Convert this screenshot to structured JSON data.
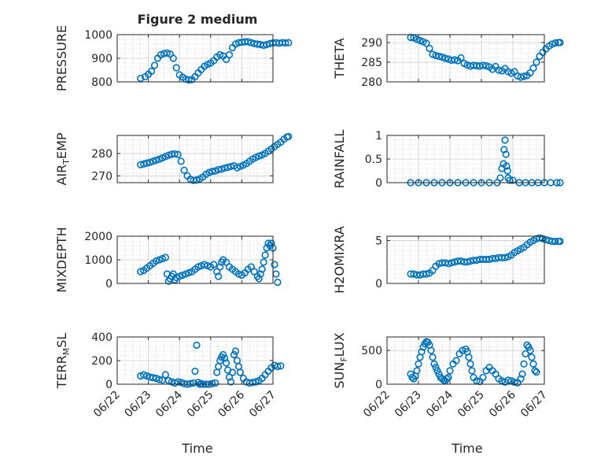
{
  "figure": {
    "title": "Figure 2 medium",
    "xlabel": "Time"
  },
  "time_ticks": [
    "06/22",
    "06/23",
    "06/24",
    "06/25",
    "06/26",
    "06/27"
  ],
  "colors": {
    "marker": "#0072BD",
    "axis": "#262626",
    "grid": "#bdbdbd"
  },
  "chart_data": [
    {
      "type": "scatter",
      "ylabel": "PRESSURE",
      "ylim": [
        800,
        1000
      ],
      "yticks": [
        800,
        900,
        1000
      ],
      "grid": true,
      "x": [
        0.75,
        0.9,
        1.0,
        1.1,
        1.2,
        1.3,
        1.4,
        1.5,
        1.6,
        1.7,
        1.8,
        1.9,
        2.0,
        2.1,
        2.2,
        2.3,
        2.4,
        2.5,
        2.6,
        2.7,
        2.8,
        2.9,
        3.0,
        3.1,
        3.2,
        3.3,
        3.4,
        3.5,
        3.6,
        3.7,
        3.8,
        3.9,
        4.0,
        4.1,
        4.2,
        4.3,
        4.4,
        4.5,
        4.6,
        4.7,
        4.8,
        4.9,
        5.0,
        5.1,
        5.2,
        5.3,
        5.4,
        5.5
      ],
      "y": [
        815,
        822,
        832,
        845,
        870,
        900,
        915,
        920,
        922,
        918,
        900,
        860,
        830,
        820,
        812,
        808,
        810,
        822,
        838,
        852,
        866,
        874,
        880,
        890,
        905,
        915,
        910,
        895,
        915,
        945,
        960,
        966,
        968,
        970,
        970,
        966,
        962,
        960,
        958,
        955,
        958,
        962,
        965,
        966,
        964,
        966,
        965,
        966
      ]
    },
    {
      "type": "scatter",
      "ylabel": "THETA",
      "ylim": [
        280,
        292
      ],
      "yticks": [
        280,
        285,
        290
      ],
      "grid": true,
      "x": [
        0.75,
        0.85,
        0.95,
        1.05,
        1.15,
        1.25,
        1.35,
        1.45,
        1.55,
        1.65,
        1.75,
        1.85,
        1.95,
        2.05,
        2.15,
        2.25,
        2.35,
        2.45,
        2.55,
        2.65,
        2.75,
        2.85,
        2.95,
        3.05,
        3.15,
        3.25,
        3.35,
        3.45,
        3.55,
        3.65,
        3.75,
        3.85,
        3.95,
        4.05,
        4.15,
        4.25,
        4.35,
        4.45,
        4.55,
        4.65,
        4.75,
        4.85,
        4.95,
        5.05,
        5.15,
        5.25,
        5.35,
        5.45,
        5.5
      ],
      "y": [
        291.3,
        291.2,
        290.8,
        290.5,
        290.2,
        289.8,
        288.5,
        287.0,
        286.7,
        286.5,
        286.3,
        286.0,
        285.8,
        285.5,
        285.6,
        285.4,
        286.1,
        284.7,
        284.3,
        284.0,
        284.2,
        284.1,
        284.0,
        284.2,
        284.1,
        283.8,
        283.2,
        283.9,
        283.0,
        282.8,
        283.4,
        282.6,
        282.2,
        282.6,
        281.5,
        281.2,
        281.4,
        281.6,
        282.3,
        283.5,
        285.0,
        286.5,
        287.5,
        288.4,
        289.1,
        289.6,
        289.9,
        290.0,
        290.0
      ]
    },
    {
      "type": "scatter",
      "ylabel": "AIR_TEMP",
      "ylim": [
        267,
        288
      ],
      "yticks": [
        270,
        280
      ],
      "grid": true,
      "x": [
        0.75,
        0.85,
        0.95,
        1.05,
        1.15,
        1.25,
        1.35,
        1.45,
        1.55,
        1.65,
        1.75,
        1.85,
        1.95,
        2.05,
        2.15,
        2.25,
        2.35,
        2.45,
        2.55,
        2.65,
        2.75,
        2.85,
        2.95,
        3.05,
        3.15,
        3.25,
        3.35,
        3.45,
        3.55,
        3.65,
        3.75,
        3.85,
        3.95,
        4.05,
        4.15,
        4.25,
        4.35,
        4.45,
        4.55,
        4.65,
        4.75,
        4.85,
        4.95,
        5.05,
        5.15,
        5.25,
        5.35,
        5.45,
        5.5
      ],
      "y": [
        275.0,
        275.3,
        275.7,
        276.0,
        276.5,
        277.0,
        277.4,
        278.0,
        278.6,
        279.2,
        279.6,
        279.8,
        279.5,
        276.5,
        272.5,
        270.0,
        268.5,
        268.0,
        268.2,
        268.7,
        269.5,
        270.7,
        271.5,
        272.0,
        272.2,
        272.8,
        273.0,
        273.5,
        273.8,
        274.2,
        274.5,
        273.6,
        274.2,
        274.8,
        275.5,
        276.5,
        277.5,
        278.2,
        278.8,
        279.3,
        280.0,
        281.0,
        282.0,
        283.0,
        284.0,
        285.0,
        286.3,
        287.3,
        287.5
      ]
    },
    {
      "type": "scatter",
      "ylabel": "RAINFALL",
      "ylim": [
        0,
        1
      ],
      "yticks": [
        0,
        0.5,
        1
      ],
      "grid": true,
      "x": [
        0.75,
        1.0,
        1.25,
        1.5,
        1.75,
        2.0,
        2.25,
        2.5,
        2.75,
        3.0,
        3.25,
        3.5,
        3.6,
        3.65,
        3.7,
        3.72,
        3.75,
        3.78,
        3.8,
        3.83,
        3.85,
        3.9,
        4.0,
        4.2,
        4.4,
        4.6,
        4.8,
        5.0,
        5.2,
        5.4,
        5.5
      ],
      "y": [
        0,
        0,
        0,
        0,
        0,
        0,
        0,
        0,
        0,
        0,
        0,
        0,
        0.1,
        0.3,
        0.4,
        0.7,
        0.9,
        0.6,
        0.35,
        0.25,
        0.1,
        0.05,
        0.05,
        0,
        0,
        0,
        0,
        0,
        0,
        0,
        0
      ]
    },
    {
      "type": "scatter",
      "ylabel": "MIXDEPTH",
      "ylim": [
        0,
        2000
      ],
      "yticks": [
        0,
        1000,
        2000
      ],
      "grid": true,
      "x": [
        0.75,
        0.85,
        0.95,
        1.05,
        1.15,
        1.25,
        1.35,
        1.45,
        1.55,
        1.6,
        1.65,
        1.7,
        1.75,
        1.8,
        1.85,
        1.9,
        2.0,
        2.1,
        2.2,
        2.3,
        2.4,
        2.5,
        2.6,
        2.7,
        2.8,
        2.9,
        3.0,
        3.1,
        3.2,
        3.25,
        3.3,
        3.35,
        3.4,
        3.5,
        3.6,
        3.7,
        3.8,
        3.9,
        4.0,
        4.1,
        4.2,
        4.3,
        4.4,
        4.5,
        4.55,
        4.6,
        4.65,
        4.7,
        4.75,
        4.8,
        4.85,
        4.9,
        4.95,
        5.0,
        5.05,
        5.1,
        5.15
      ],
      "y": [
        500,
        550,
        650,
        750,
        850,
        950,
        1000,
        1050,
        1100,
        400,
        100,
        200,
        300,
        400,
        150,
        250,
        300,
        350,
        400,
        450,
        500,
        600,
        700,
        750,
        800,
        750,
        700,
        800,
        500,
        300,
        700,
        900,
        1000,
        900,
        700,
        600,
        500,
        400,
        350,
        450,
        600,
        700,
        500,
        300,
        200,
        400,
        600,
        900,
        1200,
        1500,
        1700,
        1600,
        1700,
        1500,
        800,
        400,
        50
      ]
    },
    {
      "type": "scatter",
      "ylabel": "H2OMIXRA",
      "ylim": [
        0,
        5.5
      ],
      "yticks": [
        0,
        5
      ],
      "grid": true,
      "x": [
        0.75,
        0.85,
        0.95,
        1.05,
        1.15,
        1.25,
        1.35,
        1.45,
        1.55,
        1.65,
        1.75,
        1.85,
        1.95,
        2.05,
        2.15,
        2.25,
        2.35,
        2.45,
        2.55,
        2.65,
        2.75,
        2.85,
        2.95,
        3.05,
        3.15,
        3.25,
        3.35,
        3.45,
        3.55,
        3.65,
        3.75,
        3.85,
        3.95,
        4.05,
        4.15,
        4.25,
        4.35,
        4.45,
        4.55,
        4.65,
        4.75,
        4.85,
        4.95,
        5.05,
        5.15,
        5.25,
        5.35,
        5.45,
        5.5
      ],
      "y": [
        1.1,
        1.1,
        1.0,
        1.0,
        1.1,
        1.1,
        1.2,
        1.5,
        2.0,
        2.3,
        2.4,
        2.4,
        2.3,
        2.4,
        2.5,
        2.6,
        2.6,
        2.5,
        2.5,
        2.6,
        2.7,
        2.7,
        2.8,
        2.8,
        2.8,
        2.8,
        2.9,
        2.9,
        3.0,
        3.0,
        3.0,
        3.1,
        3.3,
        3.6,
        3.8,
        4.0,
        4.2,
        4.5,
        4.8,
        5.0,
        5.2,
        5.3,
        5.2,
        5.1,
        5.0,
        4.9,
        4.9,
        4.9,
        4.9
      ]
    },
    {
      "type": "scatter",
      "ylabel": "TERR_MSL",
      "ylim": [
        0,
        400
      ],
      "yticks": [
        0,
        200,
        400
      ],
      "grid": true,
      "x": [
        0.75,
        0.85,
        0.95,
        1.05,
        1.15,
        1.25,
        1.35,
        1.45,
        1.55,
        1.65,
        1.75,
        1.85,
        1.95,
        2.05,
        2.15,
        2.25,
        2.35,
        2.45,
        2.5,
        2.55,
        2.6,
        2.65,
        2.7,
        2.75,
        2.85,
        2.95,
        3.05,
        3.15,
        3.2,
        3.25,
        3.3,
        3.35,
        3.4,
        3.45,
        3.5,
        3.55,
        3.6,
        3.65,
        3.7,
        3.75,
        3.8,
        3.85,
        3.9,
        3.95,
        4.05,
        4.15,
        4.25,
        4.35,
        4.45,
        4.55,
        4.65,
        4.75,
        4.85,
        4.95,
        5.05,
        5.15,
        5.25
      ],
      "y": [
        70,
        80,
        70,
        60,
        55,
        50,
        40,
        35,
        80,
        30,
        20,
        10,
        20,
        15,
        5,
        0,
        5,
        10,
        110,
        330,
        15,
        0,
        5,
        0,
        0,
        0,
        5,
        10,
        100,
        150,
        200,
        230,
        250,
        220,
        180,
        120,
        60,
        20,
        100,
        250,
        280,
        200,
        150,
        100,
        50,
        20,
        10,
        15,
        20,
        30,
        50,
        80,
        110,
        140,
        160,
        150,
        155
      ]
    },
    {
      "type": "scatter",
      "ylabel": "SUN_FLUX",
      "ylim": [
        0,
        700
      ],
      "yticks": [
        0,
        500
      ],
      "grid": true,
      "x": [
        0.75,
        0.8,
        0.85,
        0.9,
        0.95,
        1.0,
        1.05,
        1.1,
        1.15,
        1.2,
        1.25,
        1.3,
        1.35,
        1.4,
        1.45,
        1.5,
        1.55,
        1.6,
        1.65,
        1.7,
        1.75,
        1.8,
        1.85,
        1.9,
        1.95,
        2.0,
        2.1,
        2.2,
        2.3,
        2.4,
        2.5,
        2.55,
        2.6,
        2.65,
        2.7,
        2.75,
        2.85,
        2.95,
        3.05,
        3.15,
        3.25,
        3.35,
        3.45,
        3.55,
        3.65,
        3.75,
        3.85,
        3.95,
        4.05,
        4.15,
        4.25,
        4.3,
        4.35,
        4.4,
        4.45,
        4.5,
        4.55,
        4.6,
        4.65,
        4.7,
        4.75
      ],
      "y": [
        150,
        100,
        80,
        120,
        200,
        300,
        400,
        480,
        550,
        600,
        630,
        620,
        580,
        500,
        400,
        300,
        250,
        200,
        150,
        100,
        80,
        60,
        50,
        80,
        100,
        200,
        300,
        350,
        450,
        500,
        520,
        480,
        400,
        300,
        200,
        100,
        50,
        40,
        100,
        200,
        250,
        200,
        150,
        80,
        50,
        30,
        60,
        50,
        30,
        20,
        80,
        150,
        300,
        450,
        580,
        550,
        500,
        400,
        300,
        200,
        180
      ]
    }
  ]
}
